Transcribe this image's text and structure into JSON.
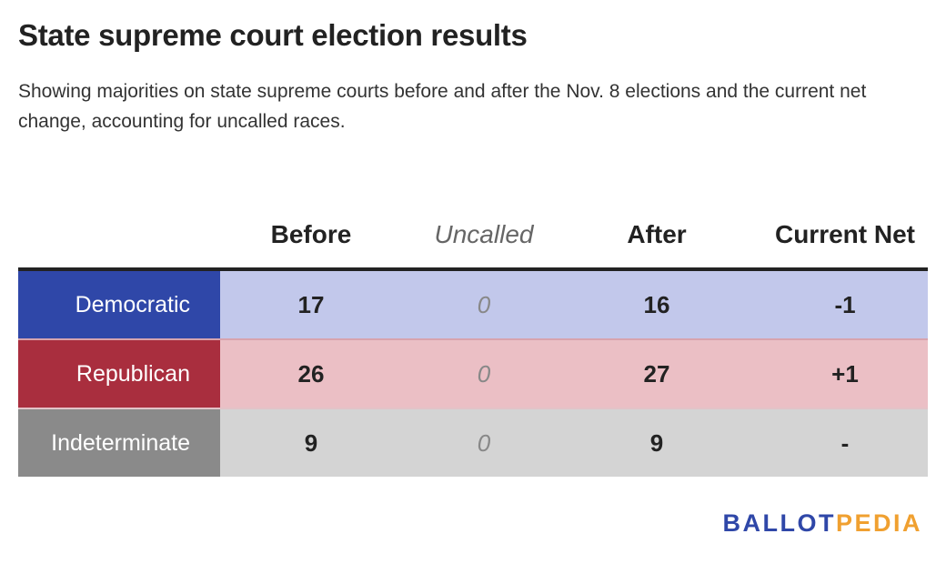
{
  "title": "State supreme court election results",
  "subtitle": "Showing majorities on state supreme courts before and after the Nov. 8 elections and the current net change, accounting for uncalled races.",
  "chart_data": {
    "type": "table",
    "columns": [
      "Before",
      "Uncalled",
      "After",
      "Current Net"
    ],
    "rows": [
      {
        "label": "Democratic",
        "before": "17",
        "uncalled": "0",
        "after": "16",
        "net": "-1",
        "label_color": "#2f47a8",
        "row_color": "#c2c8eb"
      },
      {
        "label": "Republican",
        "before": "26",
        "uncalled": "0",
        "after": "27",
        "net": "+1",
        "label_color": "#a92e3e",
        "row_color": "#ebbfc5"
      },
      {
        "label": "Indeterminate",
        "before": "9",
        "uncalled": "0",
        "after": "9",
        "net": "-",
        "label_color": "#8a8a8a",
        "row_color": "#d4d4d4"
      }
    ]
  },
  "logo": {
    "part1": "BALLOT",
    "part2": "PEDIA",
    "color1": "#2f47a8",
    "color2": "#f0a030"
  }
}
